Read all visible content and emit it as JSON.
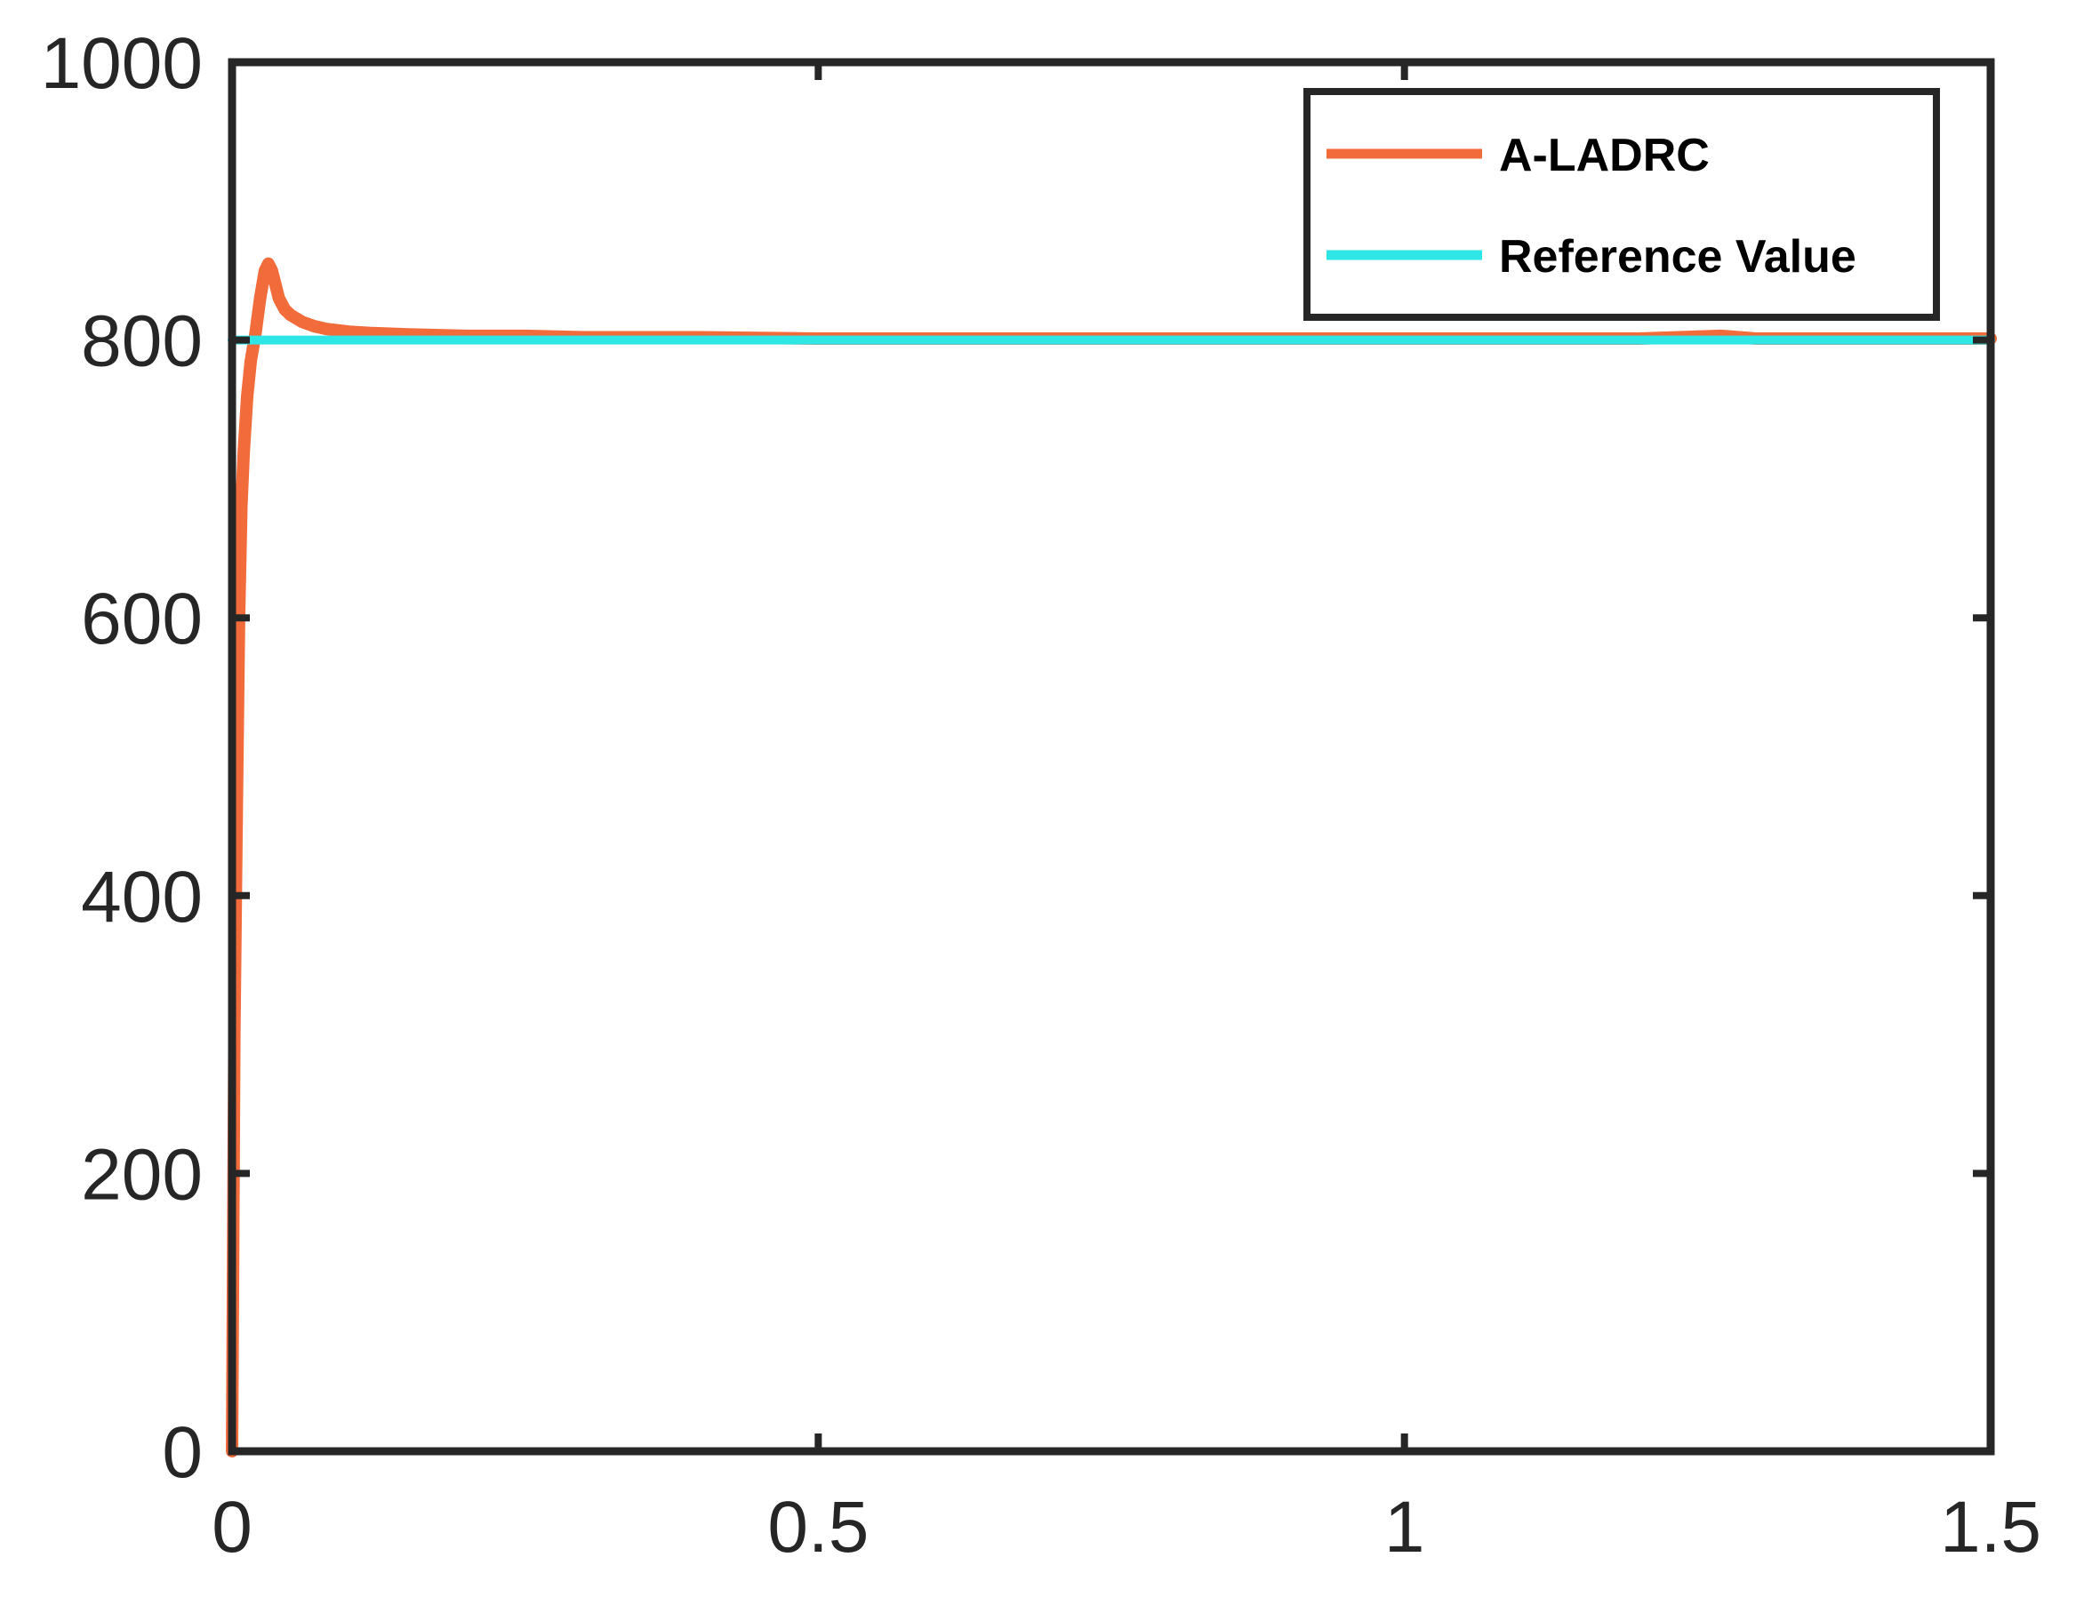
{
  "chart_data": {
    "type": "line",
    "title": "",
    "xlabel": "",
    "ylabel": "",
    "xlim": [
      0,
      1.5
    ],
    "ylim": [
      0,
      1000
    ],
    "x_ticks": [
      0,
      0.5,
      1,
      1.5
    ],
    "x_tick_labels": [
      "0",
      "0.5",
      "1",
      "1.5"
    ],
    "y_ticks": [
      0,
      200,
      400,
      600,
      800,
      1000
    ],
    "y_tick_labels": [
      "0",
      "200",
      "400",
      "600",
      "800",
      "1000"
    ],
    "grid": false,
    "legend_position": "top-right",
    "series": [
      {
        "name": "A-LADRC",
        "color": "#F26B3A",
        "x": [
          0,
          0.002,
          0.004,
          0.006,
          0.008,
          0.01,
          0.013,
          0.016,
          0.02,
          0.024,
          0.028,
          0.031,
          0.034,
          0.037,
          0.04,
          0.045,
          0.05,
          0.06,
          0.07,
          0.08,
          0.1,
          0.12,
          0.15,
          0.2,
          0.25,
          0.3,
          0.4,
          0.5,
          0.6,
          0.7,
          0.8,
          0.9,
          1.0,
          1.1,
          1.2,
          1.27,
          1.3,
          1.4,
          1.5
        ],
        "y": [
          0,
          300,
          460,
          600,
          680,
          720,
          760,
          785,
          805,
          830,
          850,
          855,
          850,
          840,
          830,
          822,
          818,
          813,
          810,
          808,
          806,
          805,
          804,
          803,
          803,
          802,
          802,
          801,
          801,
          801,
          801,
          801,
          801,
          801,
          801,
          803,
          801,
          801,
          801
        ]
      },
      {
        "name": "Reference Value",
        "color": "#2EE6E6",
        "x": [
          0,
          1.5
        ],
        "y": [
          800,
          800
        ]
      }
    ]
  }
}
